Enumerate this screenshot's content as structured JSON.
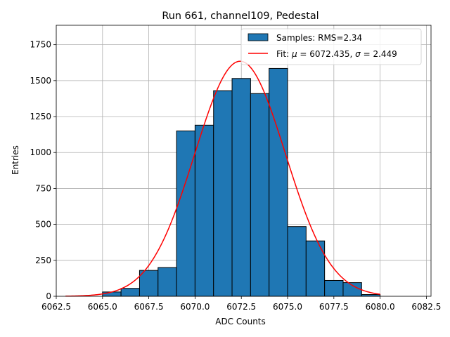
{
  "chart_data": {
    "type": "bar",
    "title": "Run 661, channel109, Pedestal",
    "xlabel": "ADC Counts",
    "ylabel": "Entries",
    "xlim": [
      6062.5,
      6082.75
    ],
    "ylim": [
      0,
      1885
    ],
    "grid": true,
    "legend_placement": "top-right",
    "x_ticks": [
      6062.5,
      6065.0,
      6067.5,
      6070.0,
      6072.5,
      6075.0,
      6077.5,
      6080.0,
      6082.5
    ],
    "x_tick_labels": [
      "6062.5",
      "6065.0",
      "6067.5",
      "6070.0",
      "6072.5",
      "6075.0",
      "6077.5",
      "6080.0",
      "6082.5"
    ],
    "y_ticks": [
      0,
      250,
      500,
      750,
      1000,
      1250,
      1500,
      1750
    ],
    "y_tick_labels": [
      "0",
      "250",
      "500",
      "750",
      "1000",
      "1250",
      "1500",
      "1750"
    ],
    "histogram": {
      "name": "Samples: RMS=2.34",
      "color": "#1f77b4",
      "edge_color": "#000000",
      "bins": [
        {
          "left": 6065,
          "right": 6066,
          "count": 30
        },
        {
          "left": 6066,
          "right": 6067,
          "count": 55
        },
        {
          "left": 6067,
          "right": 6068,
          "count": 180
        },
        {
          "left": 6068,
          "right": 6069,
          "count": 200
        },
        {
          "left": 6069,
          "right": 6070,
          "count": 1150
        },
        {
          "left": 6070,
          "right": 6071,
          "count": 1190
        },
        {
          "left": 6071,
          "right": 6072,
          "count": 1430
        },
        {
          "left": 6072,
          "right": 6073,
          "count": 1515
        },
        {
          "left": 6073,
          "right": 6074,
          "count": 1410
        },
        {
          "left": 6074,
          "right": 6075,
          "count": 1585
        },
        {
          "left": 6075,
          "right": 6076,
          "count": 485
        },
        {
          "left": 6076,
          "right": 6077,
          "count": 385
        },
        {
          "left": 6077,
          "right": 6078,
          "count": 110
        },
        {
          "left": 6078,
          "right": 6079,
          "count": 95
        },
        {
          "left": 6079,
          "right": 6080,
          "count": 12
        }
      ]
    },
    "fit": {
      "name_prefix": "Fit: ",
      "mu_label": "μ",
      "sigma_label": "σ",
      "mu_text": " = 6072.435, ",
      "sigma_text": " = 2.449",
      "color": "#ff0000",
      "mu": 6072.435,
      "sigma": 2.449,
      "amplitude": 1635,
      "x_range": [
        6063,
        6080
      ]
    }
  }
}
